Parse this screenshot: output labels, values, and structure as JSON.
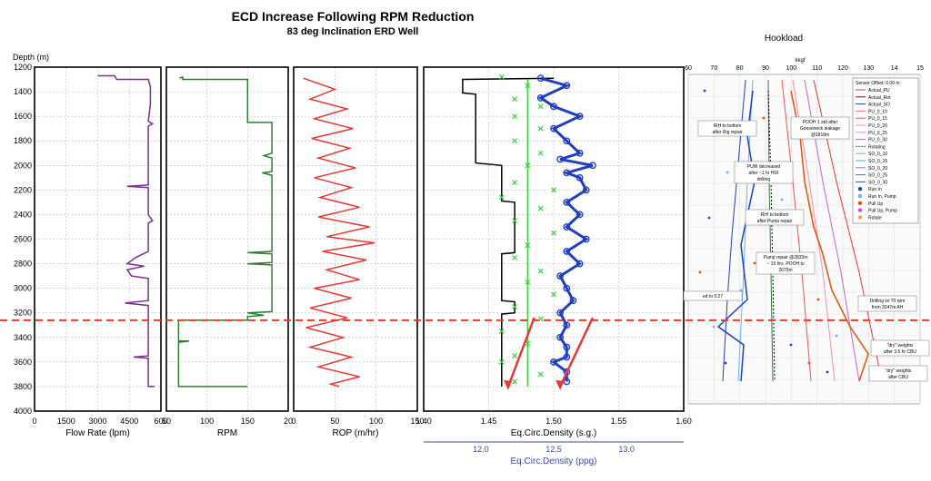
{
  "title": "ECD Increase Following RPM Reduction",
  "subtitle": "83 deg Inclination ERD Well",
  "depth_axis_label": "Depth (m)",
  "depth_ticks": [
    "1200",
    "1400",
    "1600",
    "1800",
    "2000",
    "2200",
    "2400",
    "2600",
    "2800",
    "3000",
    "3200",
    "3400",
    "3600",
    "3800",
    "4000"
  ],
  "chart_data": [
    {
      "type": "line",
      "name": "flow-rate-track",
      "xlabel": "Flow Rate (lpm)",
      "ylabel": "Depth (m)",
      "xlim": [
        0,
        6000
      ],
      "ylim": [
        4000,
        1200
      ],
      "x_tick_labels": [
        "0",
        "1500",
        "3000",
        "4500",
        "600"
      ],
      "color": "#7b2f8f",
      "points": [
        [
          3000,
          1270
        ],
        [
          3800,
          1270
        ],
        [
          3900,
          1300
        ],
        [
          5400,
          1300
        ],
        [
          5500,
          1360
        ],
        [
          5500,
          1500
        ],
        [
          5400,
          1640
        ],
        [
          5600,
          1660
        ],
        [
          5400,
          1680
        ],
        [
          5400,
          2160
        ],
        [
          4400,
          2170
        ],
        [
          5400,
          2180
        ],
        [
          5400,
          2400
        ],
        [
          5600,
          2450
        ],
        [
          5400,
          2470
        ],
        [
          5400,
          2700
        ],
        [
          4800,
          2750
        ],
        [
          4400,
          2800
        ],
        [
          5200,
          2820
        ],
        [
          4400,
          2850
        ],
        [
          4600,
          2900
        ],
        [
          5400,
          2920
        ],
        [
          5400,
          3100
        ],
        [
          4300,
          3120
        ],
        [
          5400,
          3140
        ],
        [
          5400,
          3550
        ],
        [
          4700,
          3560
        ],
        [
          5400,
          3570
        ],
        [
          5400,
          3800
        ],
        [
          5700,
          3800
        ]
      ]
    },
    {
      "type": "line",
      "name": "rpm-track",
      "xlabel": "RPM",
      "ylabel": "Depth (m)",
      "xlim": [
        50,
        200
      ],
      "ylim": [
        4000,
        1200
      ],
      "x_tick_labels": [
        "50",
        "100",
        "150",
        "20"
      ],
      "color": "#2e7d32",
      "points": [
        [
          66,
          1290
        ],
        [
          70,
          1280
        ],
        [
          70,
          1300
        ],
        [
          150,
          1300
        ],
        [
          150,
          1650
        ],
        [
          180,
          1650
        ],
        [
          180,
          1900
        ],
        [
          170,
          1920
        ],
        [
          180,
          1940
        ],
        [
          180,
          2050
        ],
        [
          168,
          2060
        ],
        [
          180,
          2080
        ],
        [
          180,
          2700
        ],
        [
          150,
          2710
        ],
        [
          180,
          2720
        ],
        [
          180,
          2790
        ],
        [
          150,
          2800
        ],
        [
          180,
          2810
        ],
        [
          180,
          3190
        ],
        [
          150,
          3200
        ],
        [
          170,
          3220
        ],
        [
          150,
          3230
        ],
        [
          150,
          3260
        ],
        [
          65,
          3260
        ],
        [
          65,
          3430
        ],
        [
          78,
          3430
        ],
        [
          65,
          3440
        ],
        [
          65,
          3800
        ],
        [
          150,
          3800
        ]
      ]
    },
    {
      "type": "line",
      "name": "rop-track",
      "xlabel": "ROP (m/hr)",
      "ylabel": "Depth (m)",
      "xlim": [
        0,
        150
      ],
      "ylim": [
        4000,
        1200
      ],
      "x_tick_labels": [
        "0",
        "50",
        "100",
        "150"
      ],
      "color": "#e53935",
      "points": [
        [
          12,
          1290
        ],
        [
          50,
          1380
        ],
        [
          20,
          1460
        ],
        [
          65,
          1540
        ],
        [
          25,
          1620
        ],
        [
          72,
          1700
        ],
        [
          22,
          1780
        ],
        [
          68,
          1860
        ],
        [
          30,
          1940
        ],
        [
          75,
          2020
        ],
        [
          25,
          2100
        ],
        [
          70,
          2180
        ],
        [
          32,
          2260
        ],
        [
          80,
          2340
        ],
        [
          30,
          2420
        ],
        [
          92,
          2500
        ],
        [
          40,
          2580
        ],
        [
          98,
          2630
        ],
        [
          35,
          2700
        ],
        [
          88,
          2770
        ],
        [
          40,
          2850
        ],
        [
          80,
          2930
        ],
        [
          25,
          3000
        ],
        [
          70,
          3080
        ],
        [
          20,
          3160
        ],
        [
          65,
          3240
        ],
        [
          15,
          3320
        ],
        [
          60,
          3400
        ],
        [
          20,
          3480
        ],
        [
          70,
          3560
        ],
        [
          30,
          3640
        ],
        [
          80,
          3720
        ],
        [
          45,
          3780
        ],
        [
          55,
          3800
        ]
      ]
    },
    {
      "type": "scatter",
      "name": "ecd-track",
      "xlabel": "Eq.Circ.Density (s.g.)",
      "x2label": "Eq.Circ.Density (ppg)",
      "ylabel": "Depth (m)",
      "xlim": [
        1.4,
        1.6
      ],
      "ylim": [
        4000,
        1200
      ],
      "x_tick_labels": [
        "1.40",
        "1.45",
        "1.50",
        "1.55",
        "1.60"
      ],
      "x2_tick_labels": [
        "12.0",
        "12.5",
        "13.0"
      ],
      "series": [
        {
          "kind": "line",
          "color": "#000000",
          "points": [
            [
              1.5,
              1290
            ],
            [
              1.43,
              1300
            ],
            [
              1.43,
              1410
            ],
            [
              1.44,
              1420
            ],
            [
              1.44,
              1980
            ],
            [
              1.46,
              2000
            ],
            [
              1.46,
              2290
            ],
            [
              1.47,
              2300
            ],
            [
              1.47,
              2710
            ],
            [
              1.46,
              2720
            ],
            [
              1.46,
              3100
            ],
            [
              1.47,
              3110
            ],
            [
              1.47,
              3200
            ],
            [
              1.46,
              3210
            ],
            [
              1.46,
              3800
            ]
          ]
        },
        {
          "kind": "line",
          "color": "#1f3fbf",
          "points": [
            [
              1.49,
              1290
            ],
            [
              1.51,
              1350
            ],
            [
              1.49,
              1450
            ],
            [
              1.5,
              1520
            ],
            [
              1.52,
              1600
            ],
            [
              1.5,
              1700
            ],
            [
              1.51,
              1800
            ],
            [
              1.52,
              1900
            ],
            [
              1.505,
              1950
            ],
            [
              1.53,
              2000
            ],
            [
              1.51,
              2060
            ],
            [
              1.52,
              2100
            ],
            [
              1.525,
              2200
            ],
            [
              1.51,
              2300
            ],
            [
              1.52,
              2400
            ],
            [
              1.51,
              2500
            ],
            [
              1.525,
              2600
            ],
            [
              1.51,
              2700
            ],
            [
              1.52,
              2800
            ],
            [
              1.505,
              2900
            ],
            [
              1.51,
              3000
            ],
            [
              1.515,
              3100
            ],
            [
              1.505,
              3200
            ],
            [
              1.51,
              3300
            ],
            [
              1.505,
              3400
            ],
            [
              1.51,
              3480
            ],
            [
              1.51,
              3560
            ],
            [
              1.5,
              3600
            ],
            [
              1.51,
              3680
            ],
            [
              1.51,
              3760
            ]
          ]
        },
        {
          "kind": "points",
          "color": "#3ad13a",
          "points": [
            [
              1.46,
              1280
            ],
            [
              1.48,
              1350
            ],
            [
              1.47,
              1460
            ],
            [
              1.49,
              1520
            ],
            [
              1.47,
              1600
            ],
            [
              1.49,
              1700
            ],
            [
              1.47,
              1800
            ],
            [
              1.49,
              1900
            ],
            [
              1.48,
              2000
            ],
            [
              1.47,
              2140
            ],
            [
              1.5,
              2200
            ],
            [
              1.46,
              2260
            ],
            [
              1.49,
              2350
            ],
            [
              1.47,
              2450
            ],
            [
              1.5,
              2550
            ],
            [
              1.48,
              2650
            ],
            [
              1.47,
              2750
            ],
            [
              1.49,
              2860
            ],
            [
              1.48,
              2950
            ],
            [
              1.5,
              3050
            ],
            [
              1.47,
              3150
            ],
            [
              1.49,
              3250
            ],
            [
              1.46,
              3350
            ],
            [
              1.48,
              3450
            ],
            [
              1.47,
              3550
            ],
            [
              1.46,
              3600
            ],
            [
              1.49,
              3700
            ],
            [
              1.47,
              3760
            ]
          ]
        },
        {
          "kind": "line",
          "color": "#3ad13a",
          "points": [
            [
              1.48,
              1300
            ],
            [
              1.48,
              3800
            ]
          ]
        },
        {
          "kind": "line",
          "color": "#e53935",
          "points": [
            [
              1.485,
              3240
            ],
            [
              1.465,
              3800
            ]
          ]
        },
        {
          "kind": "line",
          "color": "#e53935",
          "points": [
            [
              1.53,
              3240
            ],
            [
              1.505,
              3800
            ]
          ]
        }
      ]
    }
  ],
  "reference_depth": 3260,
  "reference_color": "#e53935",
  "hookload": {
    "title": "Hookload",
    "unit": "kkgf",
    "x_tick_labels": [
      "60",
      "70",
      "80",
      "90",
      "100",
      "110",
      "120",
      "130",
      "14",
      "15"
    ],
    "legend_title": "Sensor Offset: 0.00 m",
    "legend": [
      {
        "label": "Actual_PU",
        "color": "#e53935",
        "style": "line"
      },
      {
        "label": "Actual_Rot",
        "color": "#8b0000",
        "style": "line"
      },
      {
        "label": "Actual_SO",
        "color": "#1f3fbf",
        "style": "line"
      },
      {
        "label": "PU_0_10",
        "color": "#e57373",
        "style": "line"
      },
      {
        "label": "PU_0_15",
        "color": "#ef5350",
        "style": "line"
      },
      {
        "label": "PU_0_20",
        "color": "#f48fb1",
        "style": "line"
      },
      {
        "label": "PU_0_25",
        "color": "#ce93d8",
        "style": "line"
      },
      {
        "label": "PU_0_30",
        "color": "#ba68c8",
        "style": "line"
      },
      {
        "label": "Rotating",
        "color": "#2e7d32",
        "style": "dash"
      },
      {
        "label": "SO_0_10",
        "color": "#64b5f6",
        "style": "line"
      },
      {
        "label": "SO_0_15",
        "color": "#42a5f5",
        "style": "line"
      },
      {
        "label": "SO_0_20",
        "color": "#7986cb",
        "style": "line"
      },
      {
        "label": "SO_0_25",
        "color": "#5c6bc0",
        "style": "line"
      },
      {
        "label": "SO_0_30",
        "color": "#3949ab",
        "style": "line"
      },
      {
        "label": "Run In",
        "color": "#1f3fbf",
        "style": "dot"
      },
      {
        "label": "Run In, Pump",
        "color": "#64b5f6",
        "style": "dot"
      },
      {
        "label": "Pull Up",
        "color": "#e65100",
        "style": "dot"
      },
      {
        "label": "Pull Up, Pump",
        "color": "#e040fb",
        "style": "dot"
      },
      {
        "label": "Rotate",
        "color": "#f9a825",
        "style": "dot"
      }
    ],
    "annotations": [
      "RIH to bottom after Rig repair",
      "POOH 1 std after Gooseneck leakage @1818m",
      "PUW decreased after ~1 hr HDI drilling",
      "RIH to bottom after Pump repair",
      "Pump repair @2833m ~ 15 hrs. POOH to 2675m",
      "ed to 0.27",
      "Drilling w/ 70 rpm from 3247m AH",
      "\"dry\" weights after 3.5 hr CBU",
      "\"dry\" weights after CBU"
    ]
  }
}
